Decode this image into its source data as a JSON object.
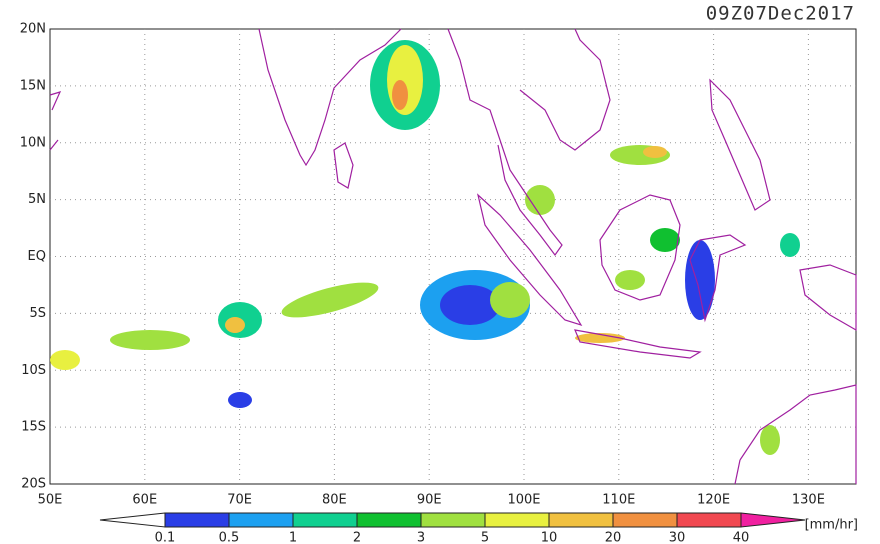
{
  "title": "09Z07Dec2017",
  "lat_labels": [
    "20N",
    "15N",
    "10N",
    "5N",
    "EQ",
    "5S",
    "10S",
    "15S",
    "20S"
  ],
  "lon_labels": [
    "50E",
    "60E",
    "70E",
    "80E",
    "90E",
    "100E",
    "110E",
    "120E",
    "130E"
  ],
  "colorbar": {
    "labels": [
      "0.1",
      "0.5",
      "1",
      "2",
      "3",
      "5",
      "10",
      "20",
      "30",
      "40"
    ],
    "colors": [
      "#2a3ee6",
      "#1ca0f0",
      "#10d090",
      "#10c030",
      "#a0e040",
      "#e8f040",
      "#f0c040",
      "#f09040",
      "#f04850"
    ],
    "under_color": "#ffffff",
    "over_color": "#f020a0"
  },
  "units": "[mm/hr]"
}
